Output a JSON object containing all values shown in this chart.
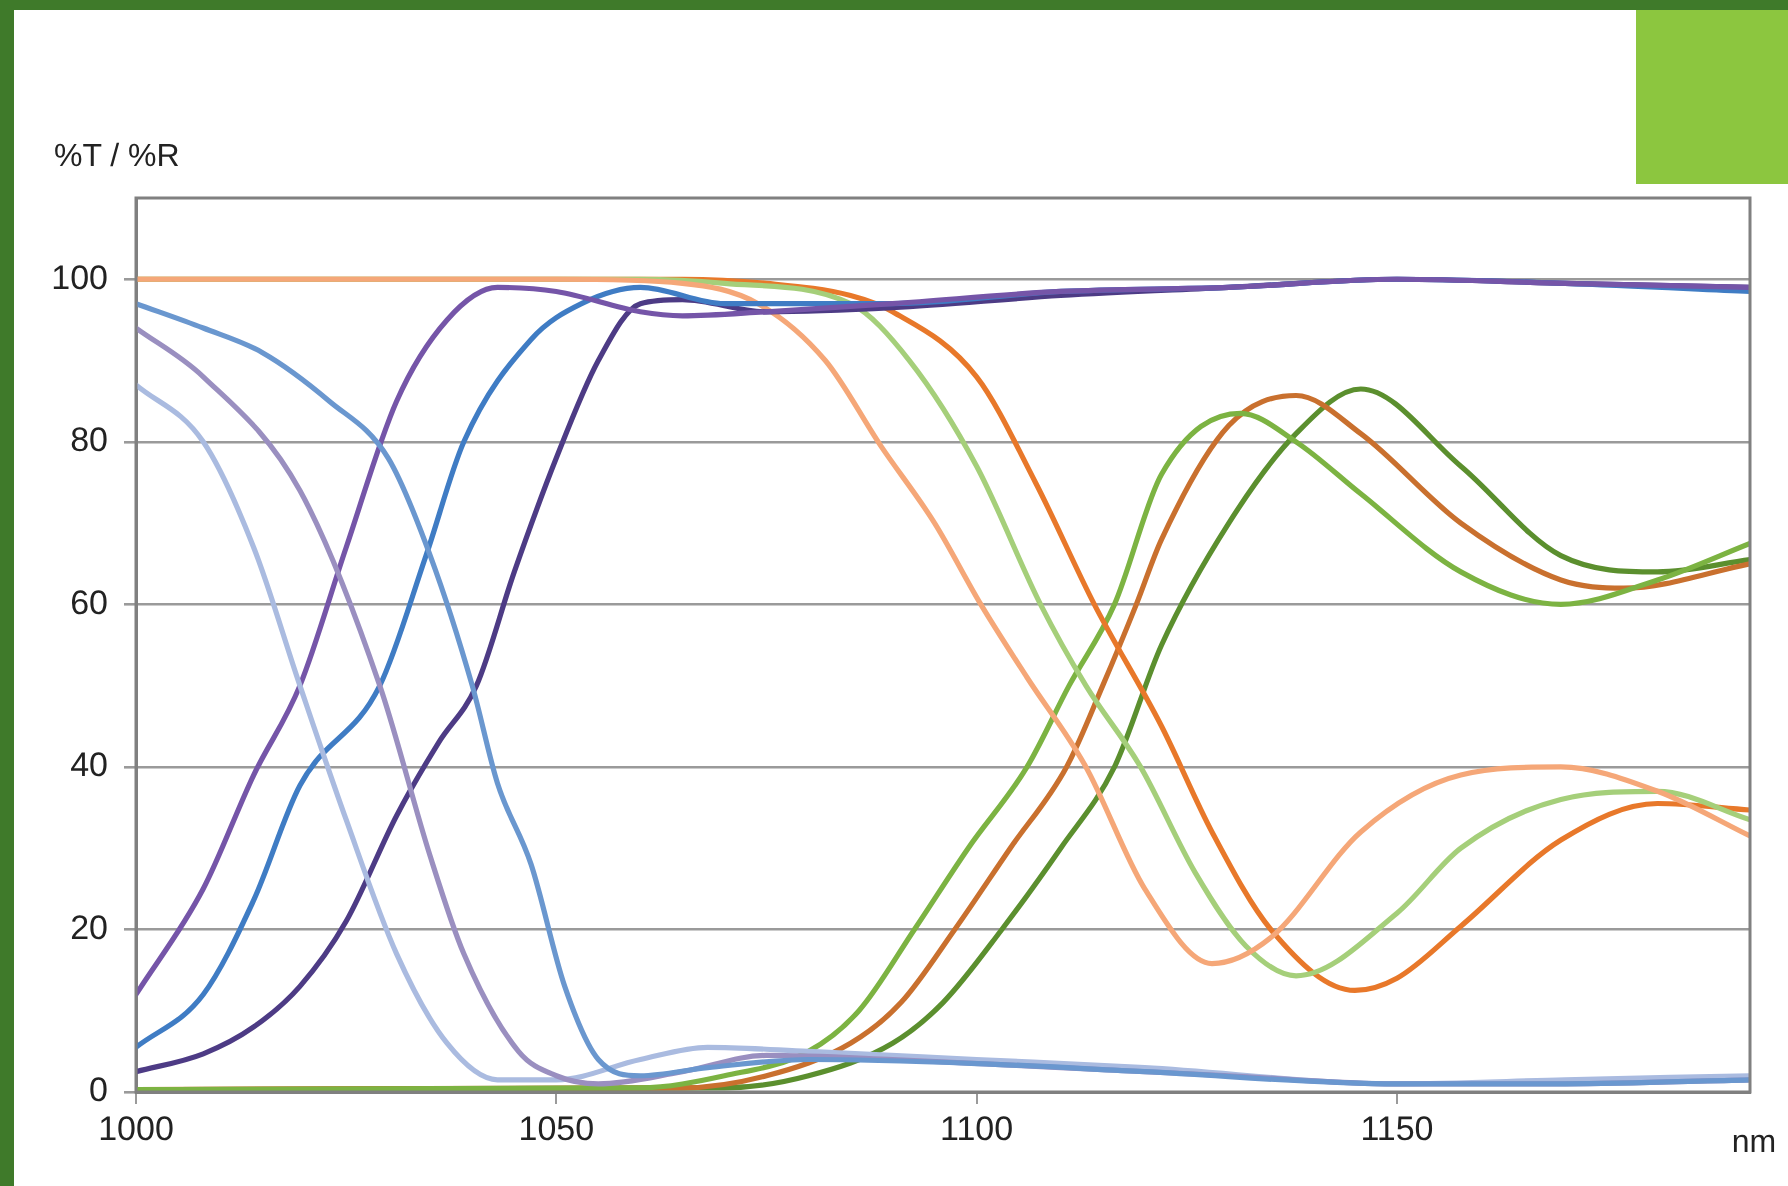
{
  "chart_data": {
    "type": "line",
    "xlabel": "nm",
    "ylabel": "%T / %R",
    "xlim": [
      1000,
      1192
    ],
    "xticks": [
      1000,
      1050,
      1100,
      1150
    ],
    "ylim": [
      0,
      110
    ],
    "yticks": [
      0,
      20,
      40,
      60,
      80,
      100
    ],
    "grid": "y",
    "legend": false,
    "marker": "none",
    "line_style": "solid",
    "series": [
      {
        "color": "#6a97cf",
        "x": [
          1000,
          1008,
          1015,
          1023,
          1030,
          1035,
          1040,
          1043,
          1047,
          1051,
          1055,
          1060,
          1068,
          1080,
          1100,
          1120,
          1150,
          1170,
          1192
        ],
        "values": [
          97,
          94,
          91,
          85,
          78,
          66,
          50,
          38,
          28,
          13,
          4,
          2,
          3,
          4,
          3.5,
          2.5,
          1,
          1,
          1.5
        ]
      },
      {
        "color": "#9a8fc0",
        "x": [
          1000,
          1008,
          1019.5,
          1029,
          1035,
          1039,
          1045.5,
          1050,
          1055,
          1065,
          1075,
          1090,
          1110,
          1130,
          1150,
          1170,
          1192
        ],
        "values": [
          94,
          88,
          74,
          50,
          29,
          17,
          5,
          2,
          1,
          2.5,
          4.5,
          4,
          3,
          2,
          1,
          1,
          1.5
        ]
      },
      {
        "color": "#aabbe0",
        "x": [
          1000,
          1008,
          1014,
          1019.5,
          1025,
          1031,
          1037,
          1043,
          1050,
          1060,
          1068,
          1080,
          1100,
          1120,
          1150,
          1170,
          1192
        ],
        "values": [
          87,
          80,
          67,
          50,
          33.5,
          17,
          6,
          1.5,
          1.5,
          4,
          5.5,
          5,
          4,
          3,
          1,
          1.5,
          2
        ]
      },
      {
        "color": "#7555a8",
        "x": [
          1000,
          1008,
          1014,
          1019.5,
          1025,
          1031,
          1037,
          1043,
          1050,
          1060,
          1065,
          1075,
          1090,
          1110,
          1130,
          1150,
          1170,
          1192
        ],
        "values": [
          12,
          25,
          39,
          50,
          67,
          85,
          95,
          99,
          98.5,
          96,
          95.5,
          96,
          97,
          98.5,
          99,
          100,
          99.5,
          99
        ]
      },
      {
        "color": "#3f7cc4",
        "x": [
          1000,
          1008,
          1014,
          1019.5,
          1029,
          1034.5,
          1039,
          1047,
          1053,
          1060,
          1070,
          1090,
          1110,
          1130,
          1150,
          1170,
          1192
        ],
        "values": [
          5.5,
          12,
          23.6,
          37.7,
          50,
          66,
          80,
          92.6,
          97,
          99,
          97,
          97,
          98.5,
          99,
          100,
          99.5,
          98.5
        ]
      },
      {
        "color": "#4d3b85",
        "x": [
          1000,
          1008,
          1014,
          1019.5,
          1025,
          1031,
          1036,
          1040.5,
          1045,
          1050,
          1055,
          1060,
          1065,
          1075,
          1090,
          1110,
          1130,
          1150,
          1170,
          1192
        ],
        "values": [
          2.5,
          4.7,
          8,
          13,
          21,
          34,
          43,
          50,
          64,
          78,
          90,
          97,
          97.5,
          96,
          96.5,
          98,
          99,
          100,
          99.5,
          99
        ]
      },
      {
        "color": "#f5a778",
        "x": [
          1000,
          1050,
          1065,
          1074,
          1082,
          1088.6,
          1095,
          1100.5,
          1106,
          1113,
          1120,
          1128,
          1135,
          1145.7,
          1157.6,
          1169.5,
          1181,
          1192
        ],
        "values": [
          100,
          100,
          99.5,
          97,
          90,
          79.5,
          70,
          60,
          51,
          40,
          25,
          15.8,
          19,
          32,
          39,
          40,
          37,
          31.5
        ]
      },
      {
        "color": "#a5cf7a",
        "x": [
          1000,
          1060,
          1070,
          1085,
          1092,
          1100,
          1107.6,
          1113,
          1119.5,
          1126,
          1132,
          1138,
          1150,
          1157.6,
          1169.5,
          1181,
          1192
        ],
        "values": [
          100,
          100,
          99.5,
          97,
          90,
          77,
          60,
          50,
          40,
          27,
          18,
          14.3,
          22,
          30,
          36,
          37,
          33.5
        ]
      },
      {
        "color": "#e8782a",
        "x": [
          1000,
          1065,
          1075,
          1085,
          1090,
          1100,
          1107,
          1114,
          1122,
          1128,
          1135,
          1145,
          1150,
          1157.6,
          1169.5,
          1181,
          1192
        ],
        "values": [
          100,
          100,
          99.5,
          98,
          96,
          88,
          75,
          60,
          45,
          32,
          20,
          12.5,
          14,
          20.4,
          31,
          35.5,
          34.7
        ]
      },
      {
        "color": "#7cb342",
        "x": [
          1000,
          1060,
          1070,
          1080,
          1086,
          1092.6,
          1099,
          1106,
          1111,
          1116.4,
          1122,
          1131.4,
          1138,
          1145.7,
          1157.6,
          1169.5,
          1181,
          1192
        ],
        "values": [
          0.3,
          0.5,
          2,
          5,
          10,
          20,
          30,
          40,
          50,
          60,
          76,
          83.5,
          80,
          73.6,
          64,
          60,
          63,
          67.5
        ]
      },
      {
        "color": "#c9702e",
        "x": [
          1000,
          1065,
          1075,
          1085,
          1091,
          1097.4,
          1104,
          1110.7,
          1115,
          1119,
          1122,
          1130,
          1138,
          1145.7,
          1157.6,
          1169.5,
          1177,
          1192
        ],
        "values": [
          0.3,
          0.5,
          2,
          6,
          11,
          20,
          30,
          40,
          50,
          60,
          68,
          82,
          85.7,
          81,
          70,
          63,
          62,
          65
        ]
      },
      {
        "color": "#5b8f2e",
        "x": [
          1000,
          1070,
          1080,
          1090,
          1096,
          1103,
          1110,
          1116.4,
          1122,
          1130,
          1138,
          1145.7,
          1157.6,
          1169.5,
          1181,
          1192
        ],
        "values": [
          0.3,
          0.5,
          2,
          6,
          11,
          20,
          30,
          40,
          55,
          70,
          81,
          86.5,
          77,
          66,
          64,
          65.5
        ]
      }
    ]
  }
}
